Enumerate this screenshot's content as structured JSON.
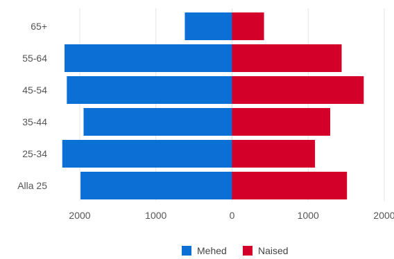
{
  "chart_data": {
    "type": "bar",
    "orientation": "horizontal",
    "layout": "population-pyramid",
    "categories": [
      "65+",
      "55-64",
      "45-54",
      "35-44",
      "25-34",
      "Alla 25"
    ],
    "series": [
      {
        "name": "Mehed",
        "side": "left",
        "color": "#0b6fd6",
        "values": [
          620,
          2200,
          2170,
          1950,
          2230,
          1990
        ]
      },
      {
        "name": "Naised",
        "side": "right",
        "color": "#d3002a",
        "values": [
          420,
          1440,
          1730,
          1290,
          1090,
          1510
        ]
      }
    ],
    "xlim": [
      -2000,
      2000
    ],
    "xticks": [
      -2000,
      -1000,
      0,
      1000,
      2000
    ],
    "xtick_labels": [
      "2000",
      "1000",
      "0",
      "1000",
      "2000"
    ],
    "grid": true,
    "legend": "bottom",
    "title": "",
    "xlabel": "",
    "ylabel": ""
  }
}
